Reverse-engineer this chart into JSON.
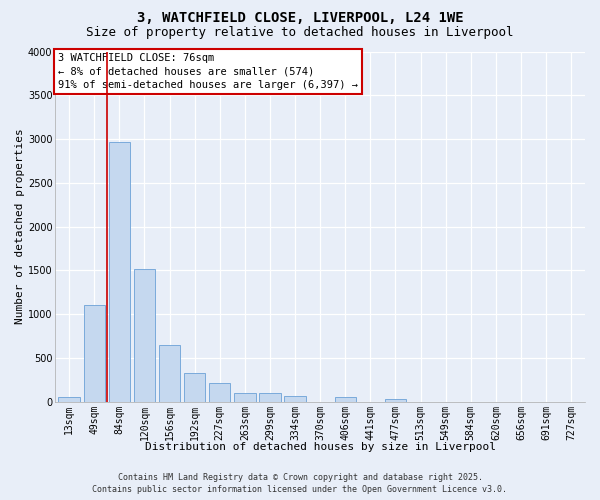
{
  "title_line1": "3, WATCHFIELD CLOSE, LIVERPOOL, L24 1WE",
  "title_line2": "Size of property relative to detached houses in Liverpool",
  "xlabel": "Distribution of detached houses by size in Liverpool",
  "ylabel": "Number of detached properties",
  "categories": [
    "13sqm",
    "49sqm",
    "84sqm",
    "120sqm",
    "156sqm",
    "192sqm",
    "227sqm",
    "263sqm",
    "299sqm",
    "334sqm",
    "370sqm",
    "406sqm",
    "441sqm",
    "477sqm",
    "513sqm",
    "549sqm",
    "584sqm",
    "620sqm",
    "656sqm",
    "691sqm",
    "727sqm"
  ],
  "values": [
    50,
    1110,
    2970,
    1520,
    650,
    330,
    215,
    100,
    100,
    65,
    0,
    50,
    0,
    30,
    0,
    0,
    0,
    0,
    0,
    0,
    0
  ],
  "bar_color": "#c5d8ef",
  "bar_edge_color": "#7aaadb",
  "vline_color": "#cc0000",
  "vline_x": 1.5,
  "annotation_text": "3 WATCHFIELD CLOSE: 76sqm\n← 8% of detached houses are smaller (574)\n91% of semi-detached houses are larger (6,397) →",
  "annotation_box_edgecolor": "#cc0000",
  "ylim_max": 4000,
  "yticks": [
    0,
    500,
    1000,
    1500,
    2000,
    2500,
    3000,
    3500,
    4000
  ],
  "background_color": "#e8eef8",
  "grid_color": "#ffffff",
  "footer_line1": "Contains HM Land Registry data © Crown copyright and database right 2025.",
  "footer_line2": "Contains public sector information licensed under the Open Government Licence v3.0.",
  "title_fontsize": 10,
  "subtitle_fontsize": 9,
  "axis_label_fontsize": 8,
  "tick_fontsize": 7,
  "annotation_fontsize": 7.5,
  "footer_fontsize": 6
}
